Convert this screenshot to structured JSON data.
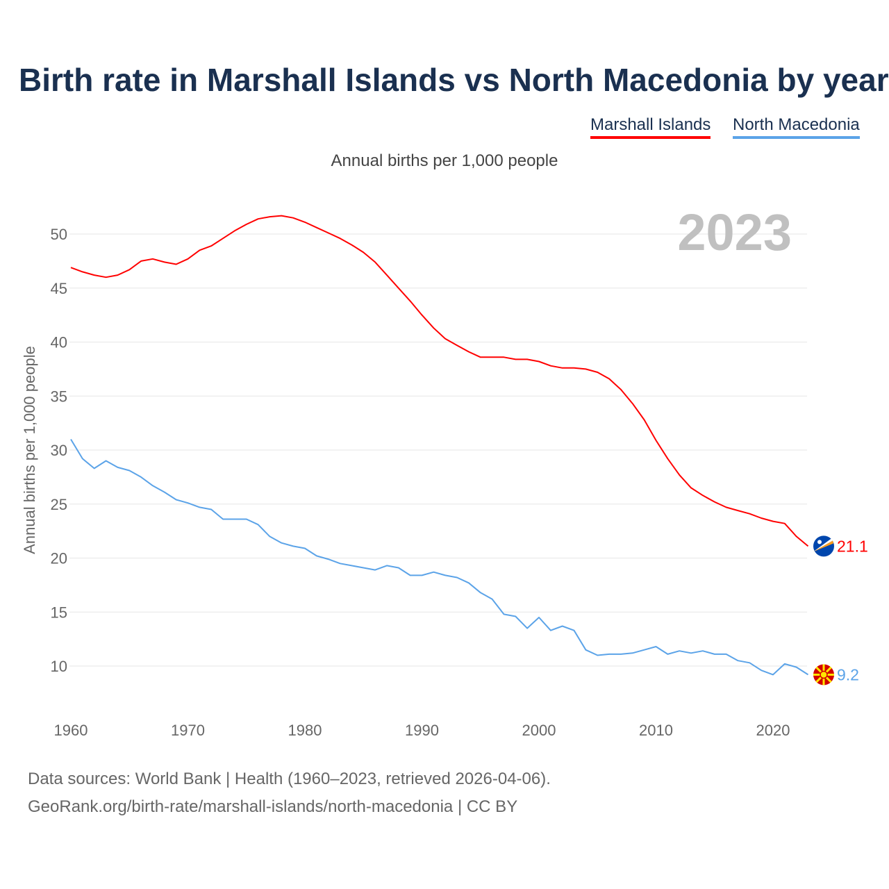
{
  "chart_data": {
    "type": "line",
    "title": "Birth rate in Marshall Islands vs North Macedonia by year",
    "subtitle": "Annual births per 1,000 people",
    "ylabel": "Annual births per 1,000 people",
    "xlabel": "",
    "year_label": "2023",
    "xlim": [
      1960,
      2023
    ],
    "ylim": [
      7,
      53
    ],
    "x_ticks": [
      1960,
      1970,
      1980,
      1990,
      2000,
      2010,
      2020
    ],
    "y_ticks": [
      10,
      15,
      20,
      25,
      30,
      35,
      40,
      45,
      50
    ],
    "grid": true,
    "legend_position": "top-right",
    "x": [
      1960,
      1961,
      1962,
      1963,
      1964,
      1965,
      1966,
      1967,
      1968,
      1969,
      1970,
      1971,
      1972,
      1973,
      1974,
      1975,
      1976,
      1977,
      1978,
      1979,
      1980,
      1981,
      1982,
      1983,
      1984,
      1985,
      1986,
      1987,
      1988,
      1989,
      1990,
      1991,
      1992,
      1993,
      1994,
      1995,
      1996,
      1997,
      1998,
      1999,
      2000,
      2001,
      2002,
      2003,
      2004,
      2005,
      2006,
      2007,
      2008,
      2009,
      2010,
      2011,
      2012,
      2013,
      2014,
      2015,
      2016,
      2017,
      2018,
      2019,
      2020,
      2021,
      2022,
      2023
    ],
    "series": [
      {
        "name": "Marshall Islands",
        "color": "#ff0000",
        "end_label": "21.1",
        "values": [
          46.9,
          46.5,
          46.2,
          46.0,
          46.2,
          46.7,
          47.5,
          47.7,
          47.4,
          47.2,
          47.7,
          48.5,
          48.9,
          49.6,
          50.3,
          50.9,
          51.4,
          51.6,
          51.7,
          51.5,
          51.1,
          50.6,
          50.1,
          49.6,
          49.0,
          48.3,
          47.4,
          46.2,
          45.0,
          43.8,
          42.5,
          41.3,
          40.3,
          39.7,
          39.1,
          38.6,
          38.6,
          38.6,
          38.4,
          38.4,
          38.2,
          37.8,
          37.6,
          37.6,
          37.5,
          37.2,
          36.6,
          35.6,
          34.3,
          32.8,
          30.9,
          29.2,
          27.7,
          26.5,
          25.8,
          25.2,
          24.7,
          24.4,
          24.1,
          23.7,
          23.4,
          23.2,
          22.0,
          21.1
        ]
      },
      {
        "name": "North Macedonia",
        "color": "#5ba3e8",
        "end_label": "9.2",
        "values": [
          31.0,
          29.2,
          28.3,
          29.0,
          28.4,
          28.1,
          27.5,
          26.7,
          26.1,
          25.4,
          25.1,
          24.7,
          24.5,
          23.6,
          23.6,
          23.6,
          23.1,
          22.0,
          21.4,
          21.1,
          20.9,
          20.2,
          19.9,
          19.5,
          19.3,
          19.1,
          18.9,
          19.3,
          19.1,
          18.4,
          18.4,
          18.7,
          18.4,
          18.2,
          17.7,
          16.8,
          16.2,
          14.8,
          14.6,
          13.5,
          14.5,
          13.3,
          13.7,
          13.3,
          11.5,
          11.0,
          11.1,
          11.1,
          11.2,
          11.5,
          11.8,
          11.1,
          11.4,
          11.2,
          11.4,
          11.1,
          11.1,
          10.5,
          10.3,
          9.6,
          9.2,
          10.2,
          9.9,
          9.2
        ]
      }
    ]
  },
  "footer": {
    "sources": "Data sources: World Bank | Health (1960–2023, retrieved 2026-04-06).",
    "link": "GeoRank.org/birth-rate/marshall-islands/north-macedonia | CC BY"
  }
}
